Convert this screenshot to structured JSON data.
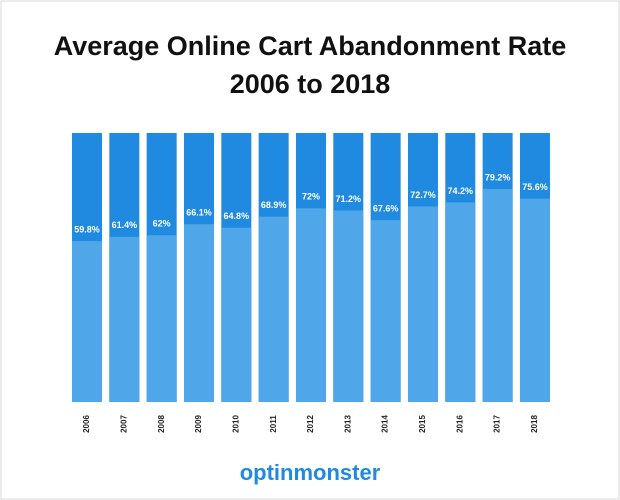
{
  "chart_data": {
    "type": "bar",
    "title": [
      "Average Online Cart Abandonment Rate",
      "2006 to 2018"
    ],
    "categories": [
      "2006",
      "2007",
      "2008",
      "2009",
      "2010",
      "2011",
      "2012",
      "2013",
      "2014",
      "2015",
      "2016",
      "2017",
      "2018"
    ],
    "values": [
      59.8,
      61.4,
      62,
      66.1,
      64.8,
      68.9,
      72,
      71.2,
      67.6,
      72.7,
      74.2,
      79.2,
      75.6
    ],
    "value_labels": [
      "59.8%",
      "61.4%",
      "62%",
      "66.1%",
      "64.8%",
      "68.9%",
      "72%",
      "71.2%",
      "67.6%",
      "72.7%",
      "74.2%",
      "79.2%",
      "75.6%"
    ],
    "color": "#4fa6e8",
    "track_color": "#1f8ae0",
    "ylim": [
      0,
      100
    ],
    "grid": false,
    "logo": "optinmonster"
  }
}
